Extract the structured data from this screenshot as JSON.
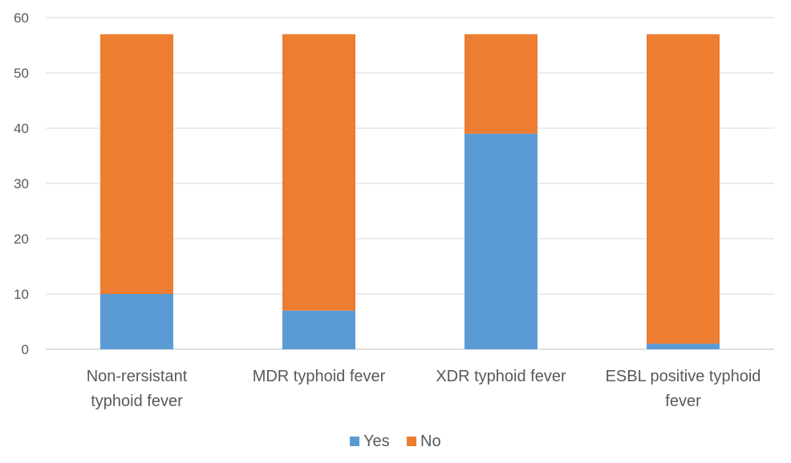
{
  "chart_data": {
    "type": "bar",
    "stacked": true,
    "categories": [
      [
        "Non-rersistant",
        "typhoid fever"
      ],
      [
        "MDR typhoid fever"
      ],
      [
        "XDR typhoid fever"
      ],
      [
        "ESBL positive typhoid",
        "fever"
      ]
    ],
    "series": [
      {
        "name": "Yes",
        "color": "#5b9bd5",
        "values": [
          10,
          7,
          39,
          1
        ]
      },
      {
        "name": "No",
        "color": "#ed7d31",
        "values": [
          47,
          50,
          18,
          56
        ]
      }
    ],
    "ylim": [
      0,
      60
    ],
    "yticks": [
      0,
      10,
      20,
      30,
      40,
      50,
      60
    ],
    "grid": true,
    "legend_position": "bottom"
  }
}
